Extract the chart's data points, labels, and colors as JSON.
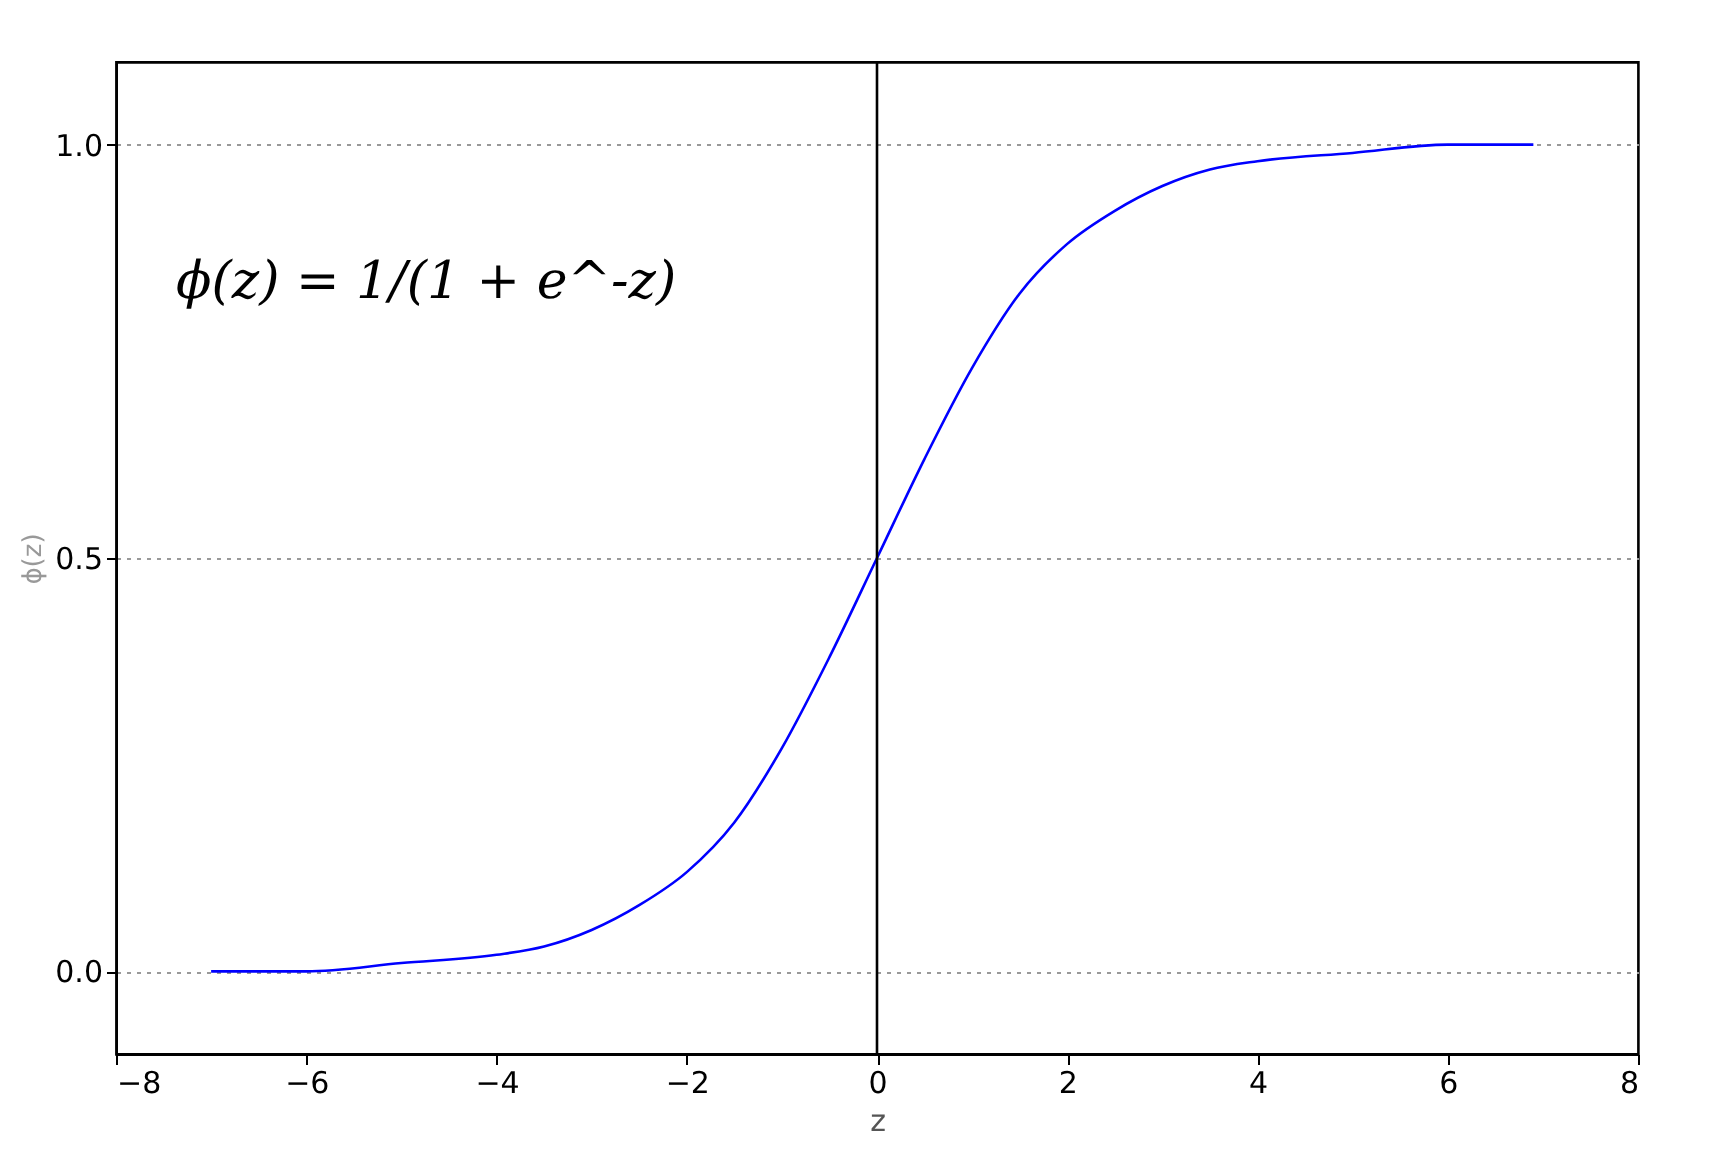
{
  "chart_data": {
    "type": "line",
    "x": [
      -7,
      -6,
      -5,
      -4,
      -3.5,
      -3,
      -2.5,
      -2,
      -1.5,
      -1,
      -0.5,
      0,
      0.5,
      1,
      1.5,
      2,
      2.5,
      3,
      3.5,
      4,
      5,
      6,
      6.9
    ],
    "series": [
      {
        "color": "#0000ff",
        "values": [
          0.0,
          0.0,
          0.01,
          0.02,
          0.03,
          0.05,
          0.08,
          0.12,
          0.18,
          0.27,
          0.38,
          0.5,
          0.62,
          0.73,
          0.82,
          0.88,
          0.92,
          0.95,
          0.97,
          0.98,
          0.99,
          1.0,
          1.0
        ]
      }
    ],
    "xlim": [
      -8,
      8
    ],
    "xticks": [
      -8,
      -6,
      -4,
      -2,
      0,
      2,
      4,
      6,
      8
    ],
    "ylim": [
      -0.1,
      1.1
    ],
    "yticks": [
      {
        "value": 0,
        "label": "0.0"
      },
      {
        "value": 0.5,
        "label": "0.5"
      },
      {
        "value": 1,
        "label": "1.0"
      }
    ],
    "xlabel": "z",
    "ylabel": "ϕ(z)",
    "grid": "y",
    "marker": "none",
    "line_style": "solid",
    "ref_lines": [
      {
        "axis": "x",
        "value": 0,
        "color": "#000000",
        "line_style": "solid"
      }
    ],
    "annotations": [
      "ϕ(z) = 1/(1 + e^-z)"
    ]
  }
}
